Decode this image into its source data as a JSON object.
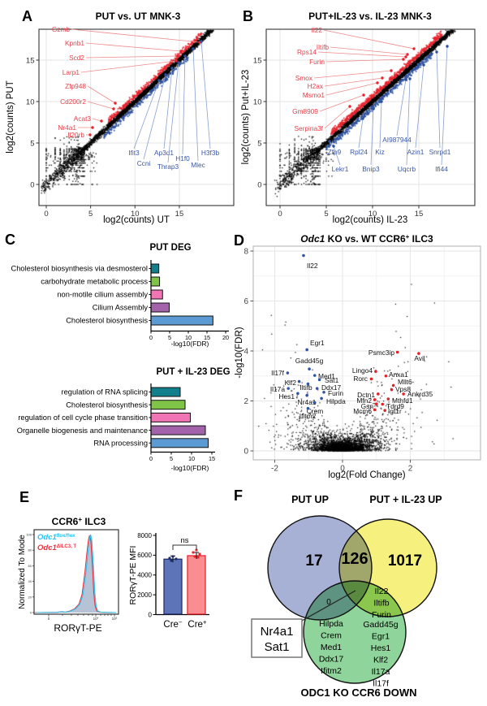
{
  "panels": {
    "a": {
      "letter": "A"
    },
    "b": {
      "letter": "B"
    },
    "c": {
      "letter": "C"
    },
    "d": {
      "letter": "D"
    },
    "e": {
      "letter": "E"
    },
    "f": {
      "letter": "F"
    }
  },
  "chart_data": [
    {
      "id": "A",
      "type": "scatter",
      "title": "PUT vs. UT MNK-3",
      "xlabel": "log2(counts) UT",
      "ylabel": "log2(counts) PUT",
      "xticks": [
        0,
        5,
        10,
        15
      ],
      "yticks": [
        0,
        5,
        10,
        15
      ],
      "xlim": [
        -1,
        20
      ],
      "ylim": [
        -3,
        19
      ],
      "up_color": "#e8232e",
      "down_color": "#2d50a0",
      "up_label_color": "#e8414b",
      "down_label_color": "#3a57a7",
      "up_genes": [
        [
          "Gzmb",
          86,
          39,
          246,
          52
        ],
        [
          "Kpnb1",
          104,
          56,
          223,
          63
        ],
        [
          "Scd2",
          104,
          74,
          219,
          69
        ],
        [
          "Larp1",
          98,
          92,
          217,
          75
        ],
        [
          "Zfp948",
          106,
          109,
          142,
          127
        ],
        [
          "Cd200r2",
          106,
          128,
          140,
          134
        ],
        [
          "Acat3",
          112,
          149,
          125,
          149
        ],
        [
          "Nr4a1",
          94,
          160,
          114,
          157
        ],
        [
          "Il20rb",
          104,
          169,
          111,
          166
        ]
      ],
      "down_genes": [
        [
          "Ifit3",
          165,
          191,
          196,
          99
        ],
        [
          "Ccni",
          177,
          204,
          204,
          92
        ],
        [
          "Ap3d1",
          202,
          191,
          212,
          84
        ],
        [
          "Thrap3",
          207,
          208,
          220,
          77
        ],
        [
          "H1f0",
          225,
          198,
          228,
          69
        ],
        [
          "Mlec",
          244,
          206,
          238,
          60
        ],
        [
          "H3f3b",
          259,
          191,
          248,
          51
        ]
      ]
    },
    {
      "id": "B",
      "type": "scatter",
      "title": "PUT+IL-23 vs. IL-23 MNK-3",
      "xlabel": "log2(counts) IL-23",
      "ylabel": "log2(counts) Put+IL-23",
      "xticks": [
        0,
        5,
        10,
        15
      ],
      "yticks": [
        0,
        5,
        10,
        15
      ],
      "xlim": [
        -1,
        20
      ],
      "ylim": [
        -3,
        19
      ],
      "up_color": "#e8232e",
      "down_color": "#2d50a0",
      "up_label_color": "#e8414b",
      "down_label_color": "#3a57a7",
      "up_genes": [
        [
          "Il22",
          397,
          40,
          510,
          60
        ],
        [
          "Iltifb",
          405,
          61,
          502,
          67
        ],
        [
          "Rps14",
          390,
          67,
          500,
          70
        ],
        [
          "Furin",
          400,
          79,
          497,
          73
        ],
        [
          "Smox",
          385,
          99,
          482,
          87
        ],
        [
          "H2ax",
          398,
          109,
          471,
          96
        ],
        [
          "Msmo1",
          400,
          120,
          465,
          102
        ],
        [
          "Gm8909",
          392,
          140,
          448,
          117
        ],
        [
          "Serpina3f",
          398,
          161,
          431,
          131
        ]
      ],
      "down_genes": [
        [
          "Zfp9",
          412,
          190,
          406,
          174
        ],
        [
          "Rpl24",
          442,
          190,
          447,
          146
        ],
        [
          "Kiz",
          468,
          190,
          470,
          125
        ],
        [
          "AI987944",
          489,
          175,
          500,
          98
        ],
        [
          "Azin1",
          512,
          190,
          522,
          80
        ],
        [
          "Snrpd1",
          542,
          190,
          538,
          64
        ],
        [
          "Lekr1",
          419,
          211,
          411,
          180
        ],
        [
          "Bnip3",
          457,
          211,
          460,
          134
        ],
        [
          "Uqcrb",
          501,
          211,
          505,
          97
        ],
        [
          "Ifi44",
          544,
          211,
          551,
          57
        ]
      ]
    },
    {
      "id": "C1",
      "type": "bar",
      "title": "PUT DEG",
      "xlabel": "-log10(FDR)",
      "categories": [
        "Cholesterol biosynthesis via desmosterol",
        "carbohydrate metabolic process",
        "non-motile cilium assembly",
        "Cilium Assembly",
        "Cholesterol biosynthesis"
      ],
      "values": [
        2.1,
        2.3,
        3.1,
        4.9,
        16.6
      ],
      "colors": [
        "#137f8c",
        "#7fc347",
        "#f175b5",
        "#a263ab",
        "#5b9ad2"
      ],
      "xticks": [
        0,
        5,
        10,
        15,
        20
      ]
    },
    {
      "id": "C2",
      "type": "bar",
      "title": "PUT + IL-23 DEG",
      "xlabel": "-log10(FDR)",
      "categories": [
        "regulation of RNA splicing",
        "Cholesterol biosynthesis",
        "regulation of cell cycle phase transition",
        "Organelle biogenesis and maintenance",
        "RNA processing"
      ],
      "values": [
        7.2,
        8.4,
        9.7,
        13.4,
        14.1
      ],
      "colors": [
        "#137f8c",
        "#7fc347",
        "#f175b5",
        "#a263ab",
        "#5b9ad2"
      ],
      "xticks": [
        0,
        5,
        10,
        15
      ]
    },
    {
      "id": "D",
      "type": "scatter",
      "title_parts": {
        "pre": "Odc1",
        "mid": " KO vs. WT CCR6",
        "sup": "+",
        "post": " ILC3"
      },
      "xlabel": "log2(Fold Change)",
      "ylabel": "-log10(FDR)",
      "xticks": [
        -2,
        0,
        2
      ],
      "yticks": [
        0,
        2,
        4,
        6,
        8
      ],
      "xlim": [
        -2.6,
        4.1
      ],
      "ylim": [
        -0.3,
        8.2
      ],
      "up_color": "#e22128",
      "down_color": "#3155a5",
      "down_genes": [
        [
          "Il22",
          -1.15,
          7.82,
          378,
          330,
          "s"
        ],
        [
          "Egr1",
          -1.05,
          4.05,
          382,
          425,
          "s"
        ],
        [
          "Il17f",
          -1.62,
          3.12,
          350,
          462,
          "e"
        ],
        [
          "Gadd45g",
          -0.98,
          3.28,
          381,
          447,
          "m"
        ],
        [
          "Med1",
          -0.82,
          3.02,
          392,
          466,
          "s"
        ],
        [
          "Klf2",
          -1.28,
          2.78,
          365,
          474,
          "e"
        ],
        [
          "Iltifb",
          -1.02,
          2.68,
          377,
          480,
          "m"
        ],
        [
          "Sat1",
          -0.68,
          2.85,
          400,
          471,
          "s"
        ],
        [
          "Il17a",
          -1.6,
          2.5,
          351,
          482,
          "e"
        ],
        [
          "Ddx17",
          -0.75,
          2.5,
          396,
          480,
          "s"
        ],
        [
          "Hes1",
          -1.32,
          2.3,
          363,
          491,
          "e"
        ],
        [
          "Nr4a1",
          -1.05,
          2.22,
          378,
          498,
          "m"
        ],
        [
          "Furin",
          -0.55,
          2.35,
          404,
          487,
          "s"
        ],
        [
          "Hilpda",
          -0.62,
          2.1,
          402,
          497,
          "s"
        ],
        [
          "Crem",
          -0.82,
          1.93,
          388,
          509,
          "m"
        ],
        [
          "Ifitm2",
          -1.02,
          1.7,
          379,
          515,
          "m"
        ]
      ],
      "up_genes": [
        [
          "Psmc3ip",
          1.62,
          3.95,
          486,
          437,
          "e"
        ],
        [
          "Avil",
          2.25,
          3.9,
          517,
          444,
          "m"
        ],
        [
          "Lingo4",
          0.98,
          3.18,
          459,
          459,
          "e"
        ],
        [
          "Anxa1",
          1.28,
          3.0,
          479,
          464,
          "s"
        ],
        [
          "Rorc",
          0.85,
          2.88,
          453,
          469,
          "e"
        ],
        [
          "Mllt6",
          1.5,
          2.62,
          490,
          473,
          "s"
        ],
        [
          "Vps8",
          1.45,
          2.45,
          487,
          482,
          "s"
        ],
        [
          "Dctn1",
          1.05,
          2.28,
          462,
          489,
          "e"
        ],
        [
          "Ankrd35",
          1.8,
          2.28,
          502,
          488,
          "s"
        ],
        [
          "Mfn2",
          0.95,
          2.05,
          458,
          496,
          "e"
        ],
        [
          "Mthfd1",
          1.35,
          2.08,
          483,
          496,
          "s"
        ],
        [
          "Gsn",
          1.0,
          1.88,
          460,
          503,
          "e"
        ],
        [
          "Tdrd9",
          1.18,
          1.87,
          476,
          503,
          "s"
        ],
        [
          "Mcm6",
          0.95,
          1.65,
          458,
          509,
          "e"
        ],
        [
          "Igf1r",
          1.25,
          1.62,
          478,
          509,
          "s"
        ]
      ]
    },
    {
      "id": "E1",
      "type": "histogram",
      "title_parts": {
        "pre": "CCR6",
        "sup": "+",
        "post": " ILC3"
      },
      "xlabel": "RORγT-PE",
      "ylabel": "Normalized To Mode",
      "yticks": [
        100,
        80,
        60,
        40,
        20,
        0
      ],
      "xtick_labels": [
        "0",
        "10",
        "4",
        "10",
        "5"
      ],
      "legend": [
        {
          "gene": "Odc1",
          "sup": "flox/flox",
          "color": "#29c3f1"
        },
        {
          "gene": "Odc1",
          "sup": "ΔILC3, T",
          "color": "#ee3340"
        }
      ],
      "fill_color": "#a9b9cf"
    },
    {
      "id": "E2",
      "type": "bar",
      "ylabel": "RORγT-PE MFI",
      "yticks": [
        0,
        2000,
        4000,
        6000,
        8000
      ],
      "categories": [
        "Cre−",
        "Cre+"
      ],
      "cat_parts": [
        {
          "base": "Cre",
          "sup": "−"
        },
        {
          "base": "Cre",
          "sup": "+"
        }
      ],
      "values": [
        5600,
        5950
      ],
      "sig": "ns",
      "bar_fills": [
        "#5d74b8",
        "#f98d90"
      ],
      "bar_strokes": [
        "#23306b",
        "#e8252d"
      ]
    },
    {
      "id": "F",
      "type": "venn",
      "set_labels": [
        "PUT UP",
        "PUT + IL-23 UP",
        "ODC1 KO CCR6 DOWN"
      ],
      "counts": {
        "only_a": "17",
        "ab": "126",
        "only_b": "1017",
        "ag": "0"
      },
      "callout": [
        "Nr4a1",
        "Sat1"
      ],
      "genes_yellow_green": [
        "Il22",
        "Iltifb",
        "Furin"
      ],
      "genes_green_col1": [
        "Hilpda",
        "Crem",
        "Med1",
        "Ddx17",
        "Ifitm2"
      ],
      "genes_green_col2": [
        "Gadd45g",
        "Egr1",
        "Hes1",
        "Klf2",
        "Il17a",
        "Il17f"
      ],
      "circle_fills": {
        "blue": "#a7b1d6",
        "yellow": "#f6f07e",
        "green": "#8fd49a"
      }
    }
  ]
}
